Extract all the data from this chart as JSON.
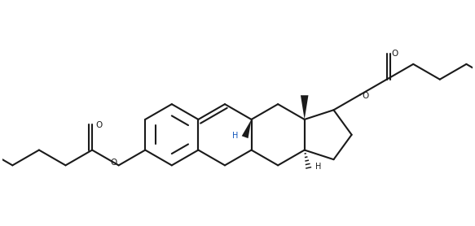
{
  "background": "#ffffff",
  "line_color": "#1a1a1a",
  "line_width": 1.5,
  "figsize": [
    5.83,
    2.78
  ],
  "dpi": 100,
  "xlim": [
    0,
    5.83
  ],
  "ylim": [
    0,
    2.78
  ]
}
